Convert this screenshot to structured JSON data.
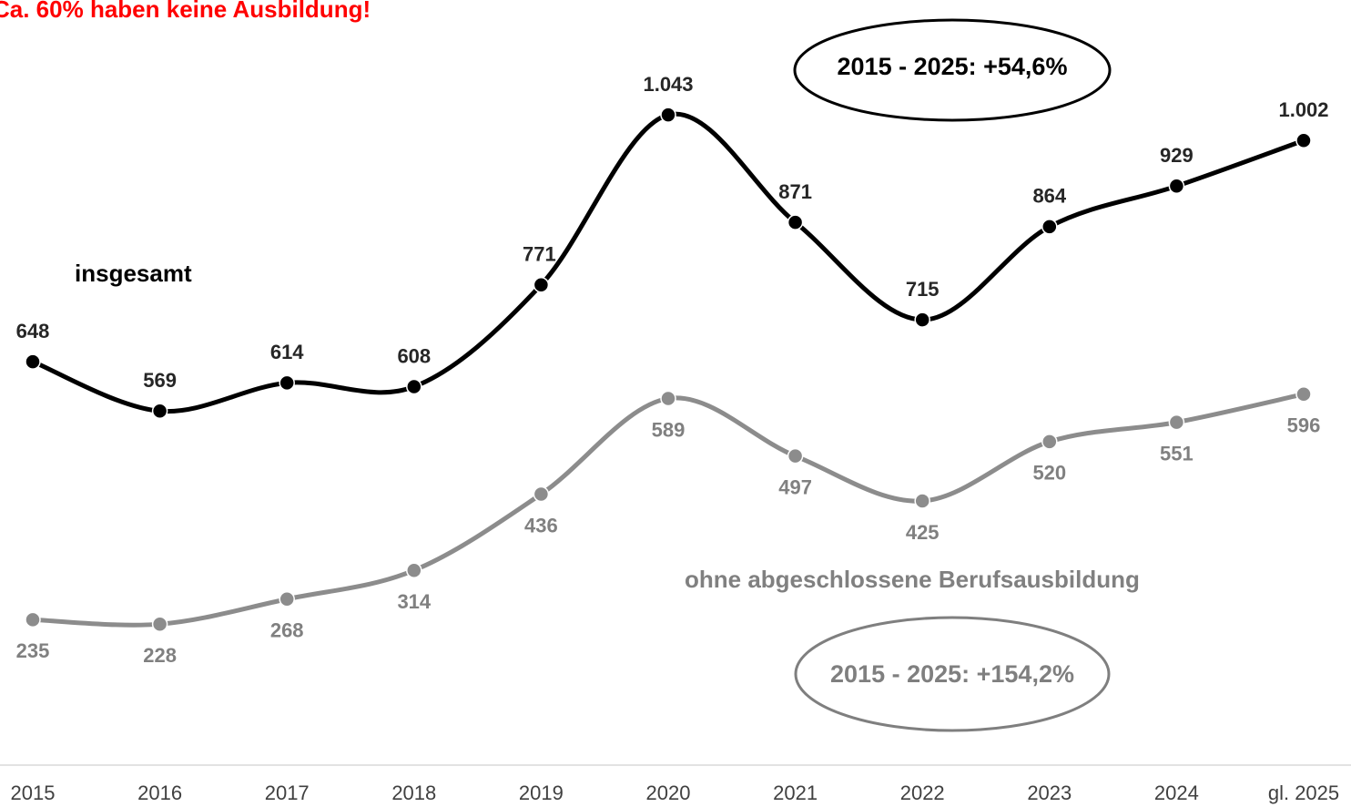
{
  "chart_data": {
    "type": "line",
    "title": "Ca. 60% haben keine Ausbildung!",
    "categories": [
      "2015",
      "2016",
      "2017",
      "2018",
      "2019",
      "2020",
      "2021",
      "2022",
      "2023",
      "2024",
      "gl. 2025"
    ],
    "series": [
      {
        "name": "insgesamt",
        "color": "#000000",
        "values": [
          648,
          569,
          614,
          608,
          771,
          1043,
          871,
          715,
          864,
          929,
          1002
        ],
        "value_labels": [
          "648",
          "569",
          "614",
          "608",
          "771",
          "1.043",
          "871",
          "715",
          "864",
          "929",
          "1.002"
        ]
      },
      {
        "name": "ohne abgeschlossene Berufsausbildung",
        "color": "#8c8c8c",
        "values": [
          235,
          228,
          268,
          314,
          436,
          589,
          497,
          425,
          520,
          551,
          596
        ]
      }
    ],
    "annotations": [
      "2015 - 2025: +54,6%",
      "2015 - 2025: +154,2%"
    ]
  }
}
